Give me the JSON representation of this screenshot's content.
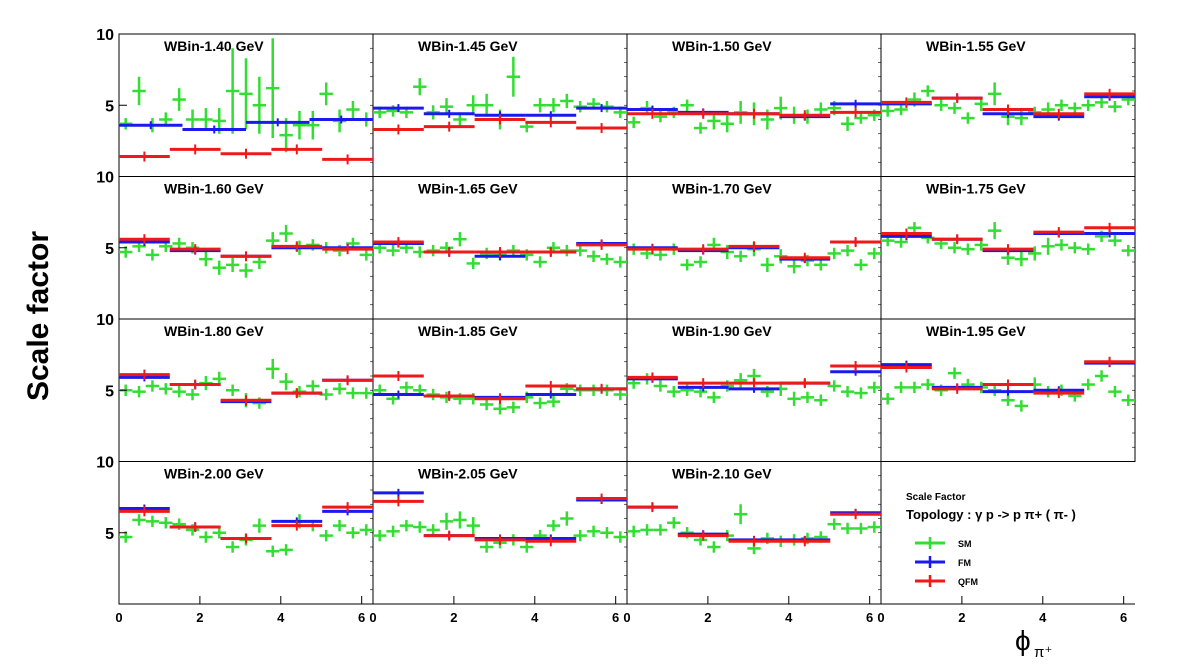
{
  "figure": {
    "ylabel": "Scale factor",
    "xlabel": "ϕ",
    "xlabel_sub": "π⁺",
    "legend_title": "Scale Factor",
    "legend_topology": "Topology :  γ p -> p  π+ ( π- )",
    "y_ticks": [
      "10",
      "5"
    ],
    "x_ticks": [
      "0",
      "2",
      "4",
      "6"
    ]
  },
  "chart_data": {
    "type": "scatter",
    "xlim": [
      0,
      6.28
    ],
    "ylim": [
      0,
      10
    ],
    "series_styles": [
      {
        "name": "SM",
        "color": "#33dd33"
      },
      {
        "name": "FM",
        "color": "#1a1aee"
      },
      {
        "name": "QFM",
        "color": "#ee1a1a"
      }
    ],
    "panels": [
      {
        "title": "WBin-1.40 GeV",
        "SM": [
          3.7,
          6.0,
          3.6,
          4.0,
          5.4,
          4.0,
          4.0,
          3.9,
          6.0,
          5.8,
          5.0,
          6.2,
          2.9,
          3.6,
          3.6,
          5.8,
          3.9,
          4.7,
          4.0
        ],
        "SM_err": [
          0.4,
          1.0,
          0.5,
          0.5,
          0.8,
          0.7,
          0.8,
          0.9,
          3.0,
          2.5,
          2.0,
          3.5,
          1.2,
          1.0,
          1.0,
          0.8,
          0.8,
          0.6,
          0.5
        ],
        "FM": [
          3.6,
          3.3,
          3.8,
          4.0
        ],
        "QFM": [
          1.4,
          1.9,
          1.6,
          1.9,
          1.2
        ]
      },
      {
        "title": "WBin-1.45 GeV",
        "SM": [
          4.5,
          4.6,
          4.5,
          6.3,
          4.5,
          4.9,
          4.0,
          5.0,
          5.0,
          4.0,
          7.0,
          3.5,
          5.0,
          5.0,
          5.3,
          4.9,
          5.1,
          4.9,
          4.5
        ],
        "SM_err": [
          0.4,
          0.4,
          0.4,
          0.6,
          0.5,
          0.6,
          0.5,
          0.7,
          0.8,
          0.7,
          1.4,
          0.4,
          0.5,
          0.5,
          0.5,
          0.4,
          0.4,
          0.4,
          0.4
        ],
        "FM": [
          4.8,
          4.4,
          4.3,
          4.3,
          4.8
        ],
        "QFM": [
          3.3,
          3.5,
          4.0,
          3.8,
          3.4
        ]
      },
      {
        "title": "WBin-1.50 GeV",
        "SM": [
          3.8,
          4.8,
          4.2,
          4.5,
          5.0,
          3.4,
          3.9,
          3.7,
          4.5,
          4.4,
          4.0,
          4.8,
          4.3,
          4.2,
          4.7,
          4.8,
          3.7,
          4.1,
          4.3
        ],
        "SM_err": [
          0.4,
          0.5,
          0.4,
          0.4,
          0.4,
          0.4,
          0.6,
          0.6,
          0.8,
          0.8,
          0.7,
          0.8,
          0.6,
          0.5,
          0.5,
          0.5,
          0.5,
          0.4,
          0.4
        ],
        "FM": [
          4.7,
          4.5,
          4.4,
          4.2,
          5.1
        ],
        "QFM": [
          4.4,
          4.4,
          4.4,
          4.3,
          4.5
        ]
      },
      {
        "title": "WBin-1.55 GeV",
        "SM": [
          4.6,
          4.7,
          5.4,
          6.0,
          5.0,
          4.8,
          4.1,
          5.1,
          5.8,
          4.2,
          4.1,
          4.5,
          4.7,
          5.0,
          4.8,
          5.0,
          5.2,
          4.9,
          5.4
        ],
        "SM_err": [
          0.4,
          0.4,
          0.5,
          0.4,
          0.4,
          0.4,
          0.4,
          0.5,
          0.8,
          0.6,
          0.5,
          0.4,
          0.5,
          0.4,
          0.4,
          0.4,
          0.4,
          0.4,
          0.4
        ],
        "FM": [
          5.1,
          5.5,
          4.4,
          4.2,
          5.6
        ],
        "QFM": [
          5.2,
          5.5,
          4.7,
          4.4,
          5.8
        ]
      },
      {
        "title": "WBin-1.60 GeV",
        "SM": [
          4.7,
          5.1,
          4.5,
          5.1,
          5.3,
          5.0,
          4.2,
          3.6,
          3.8,
          3.4,
          4.0,
          5.5,
          6.0,
          5.0,
          5.2,
          5.0,
          4.8,
          5.3,
          4.5
        ],
        "SM_err": [
          0.4,
          0.4,
          0.4,
          0.4,
          0.4,
          0.4,
          0.5,
          0.5,
          0.5,
          0.5,
          0.5,
          0.6,
          0.6,
          0.5,
          0.4,
          0.4,
          0.4,
          0.4,
          0.4
        ],
        "FM": [
          5.4,
          4.8,
          4.4,
          5.0,
          5.0
        ],
        "QFM": [
          5.6,
          4.9,
          4.4,
          5.1,
          4.9
        ]
      },
      {
        "title": "WBin-1.65 GeV",
        "SM": [
          5.0,
          4.8,
          5.0,
          4.7,
          4.8,
          5.0,
          5.6,
          3.9,
          4.6,
          4.5,
          4.8,
          4.5,
          4.0,
          5.0,
          4.8,
          4.8,
          4.4,
          4.2,
          4.0
        ],
        "SM_err": [
          0.4,
          0.4,
          0.4,
          0.4,
          0.4,
          0.4,
          0.5,
          0.4,
          0.4,
          0.4,
          0.4,
          0.4,
          0.4,
          0.4,
          0.4,
          0.4,
          0.4,
          0.4,
          0.4
        ],
        "FM": [
          5.3,
          4.7,
          4.4,
          4.7,
          5.3
        ],
        "QFM": [
          5.4,
          4.7,
          4.7,
          4.7,
          5.2
        ]
      },
      {
        "title": "WBin-1.70 GeV",
        "SM": [
          4.9,
          4.6,
          4.5,
          4.9,
          3.8,
          4.0,
          5.2,
          4.7,
          4.4,
          4.9,
          3.8,
          4.4,
          3.7,
          4.1,
          3.8,
          4.6,
          4.8,
          3.8,
          4.6
        ],
        "SM_err": [
          0.4,
          0.4,
          0.4,
          0.4,
          0.4,
          0.4,
          0.5,
          0.5,
          0.4,
          0.5,
          0.5,
          0.5,
          0.5,
          0.4,
          0.4,
          0.4,
          0.4,
          0.4,
          0.4
        ],
        "FM": [
          5.0,
          4.8,
          5.0,
          4.2,
          5.4
        ],
        "QFM": [
          4.9,
          4.9,
          5.1,
          4.3,
          5.4
        ]
      },
      {
        "title": "WBin-1.75 GeV",
        "SM": [
          5.5,
          5.4,
          6.4,
          5.7,
          5.3,
          5.0,
          4.9,
          5.2,
          6.2,
          4.3,
          4.2,
          4.6,
          5.1,
          5.2,
          5.0,
          4.9,
          5.8,
          5.5,
          4.8
        ],
        "SM_err": [
          0.4,
          0.4,
          0.4,
          0.4,
          0.4,
          0.4,
          0.4,
          0.4,
          0.6,
          0.5,
          0.5,
          0.5,
          0.6,
          0.4,
          0.4,
          0.4,
          0.4,
          0.4,
          0.4
        ],
        "FM": [
          5.8,
          5.6,
          4.8,
          6.0,
          6.0
        ],
        "QFM": [
          6.0,
          5.6,
          4.9,
          6.1,
          6.4
        ]
      },
      {
        "title": "WBin-1.80 GeV",
        "SM": [
          5.0,
          4.9,
          5.3,
          5.1,
          4.9,
          4.7,
          5.5,
          5.8,
          5.0,
          4.3,
          4.1,
          6.5,
          5.6,
          4.9,
          5.3,
          4.7,
          5.1,
          4.8,
          4.8
        ],
        "SM_err": [
          0.4,
          0.4,
          0.4,
          0.4,
          0.4,
          0.4,
          0.5,
          0.5,
          0.4,
          0.5,
          0.4,
          0.7,
          0.6,
          0.4,
          0.4,
          0.4,
          0.4,
          0.4,
          0.4
        ],
        "FM": [
          5.9,
          5.4,
          4.2,
          4.8,
          5.7
        ],
        "QFM": [
          6.1,
          5.4,
          4.3,
          4.8,
          5.7
        ]
      },
      {
        "title": "WBin-1.85 GeV",
        "SM": [
          5.0,
          4.4,
          5.2,
          5.0,
          4.7,
          4.5,
          4.4,
          4.4,
          4.0,
          3.7,
          3.8,
          4.5,
          4.1,
          4.2,
          5.1,
          5.0,
          5.0,
          5.0,
          4.7
        ],
        "SM_err": [
          0.4,
          0.4,
          0.4,
          0.4,
          0.4,
          0.4,
          0.4,
          0.4,
          0.4,
          0.4,
          0.4,
          0.4,
          0.4,
          0.4,
          0.4,
          0.4,
          0.4,
          0.4,
          0.4
        ],
        "FM": [
          4.7,
          4.6,
          4.5,
          4.7,
          5.1
        ],
        "QFM": [
          6.0,
          4.6,
          4.4,
          5.3,
          5.1
        ]
      },
      {
        "title": "WBin-1.90 GeV",
        "SM": [
          5.5,
          5.8,
          5.3,
          4.9,
          5.0,
          4.9,
          4.5,
          5.3,
          5.7,
          6.0,
          4.9,
          5.1,
          4.4,
          4.5,
          4.3,
          5.3,
          4.9,
          4.8,
          5.2
        ],
        "SM_err": [
          0.4,
          0.4,
          0.4,
          0.4,
          0.4,
          0.4,
          0.4,
          0.4,
          0.5,
          0.5,
          0.4,
          0.5,
          0.5,
          0.4,
          0.4,
          0.4,
          0.4,
          0.4,
          0.4
        ],
        "FM": [
          5.8,
          5.2,
          5.1,
          5.5,
          6.3
        ],
        "QFM": [
          5.9,
          5.5,
          5.5,
          5.5,
          6.7
        ]
      },
      {
        "title": "WBin-1.95 GeV",
        "SM": [
          4.4,
          5.2,
          5.2,
          5.4,
          5.0,
          6.2,
          5.4,
          5.2,
          5.0,
          4.3,
          3.9,
          5.4,
          4.9,
          5.0,
          4.6,
          5.4,
          6.0,
          4.9,
          4.3
        ],
        "SM_err": [
          0.4,
          0.4,
          0.4,
          0.4,
          0.4,
          0.4,
          0.4,
          0.4,
          0.4,
          0.4,
          0.4,
          0.5,
          0.4,
          0.4,
          0.4,
          0.4,
          0.4,
          0.4,
          0.4
        ],
        "FM": [
          6.8,
          5.2,
          4.9,
          5.0,
          6.9
        ],
        "QFM": [
          6.6,
          5.1,
          5.4,
          4.8,
          7.0
        ]
      },
      {
        "title": "WBin-2.00 GeV",
        "SM": [
          4.7,
          5.9,
          5.8,
          5.7,
          5.6,
          5.2,
          4.7,
          5.0,
          4.0,
          4.5,
          5.5,
          3.7,
          3.8,
          5.8,
          5.5,
          4.8,
          5.5,
          5.0,
          5.2
        ],
        "SM_err": [
          0.4,
          0.4,
          0.4,
          0.4,
          0.4,
          0.4,
          0.4,
          0.4,
          0.4,
          0.4,
          0.5,
          0.4,
          0.4,
          0.5,
          0.4,
          0.4,
          0.4,
          0.4,
          0.4
        ],
        "FM": [
          6.7,
          5.4,
          4.6,
          5.8,
          6.5
        ],
        "QFM": [
          6.5,
          5.4,
          4.6,
          5.5,
          6.8
        ]
      },
      {
        "title": "WBin-2.05 GeV",
        "SM": [
          4.8,
          5.1,
          5.5,
          5.4,
          5.2,
          5.8,
          5.9,
          5.5,
          4.0,
          4.3,
          4.5,
          4.0,
          4.8,
          5.5,
          6.0,
          4.8,
          5.1,
          5.0,
          4.7
        ],
        "SM_err": [
          0.4,
          0.4,
          0.4,
          0.4,
          0.4,
          0.6,
          0.6,
          0.6,
          0.4,
          0.4,
          0.4,
          0.4,
          0.4,
          0.4,
          0.5,
          0.4,
          0.4,
          0.4,
          0.4
        ],
        "FM": [
          7.8,
          4.8,
          4.6,
          4.6,
          7.3
        ],
        "QFM": [
          7.2,
          4.8,
          4.5,
          4.4,
          7.4
        ]
      },
      {
        "title": "WBin-2.10 GeV",
        "SM": [
          5.1,
          5.2,
          5.2,
          5.7,
          5.0,
          4.5,
          4.0,
          4.8,
          6.3,
          3.9,
          4.6,
          4.4,
          4.5,
          4.6,
          4.7,
          5.6,
          5.3,
          5.3,
          5.4
        ],
        "SM_err": [
          0.4,
          0.4,
          0.4,
          0.4,
          0.4,
          0.4,
          0.4,
          0.4,
          0.7,
          0.4,
          0.4,
          0.4,
          0.4,
          0.4,
          0.4,
          0.4,
          0.4,
          0.4,
          0.4
        ],
        "FM": [
          6.8,
          4.9,
          4.5,
          4.5,
          6.4
        ],
        "QFM": [
          6.8,
          4.8,
          4.4,
          4.4,
          6.3
        ]
      }
    ]
  }
}
